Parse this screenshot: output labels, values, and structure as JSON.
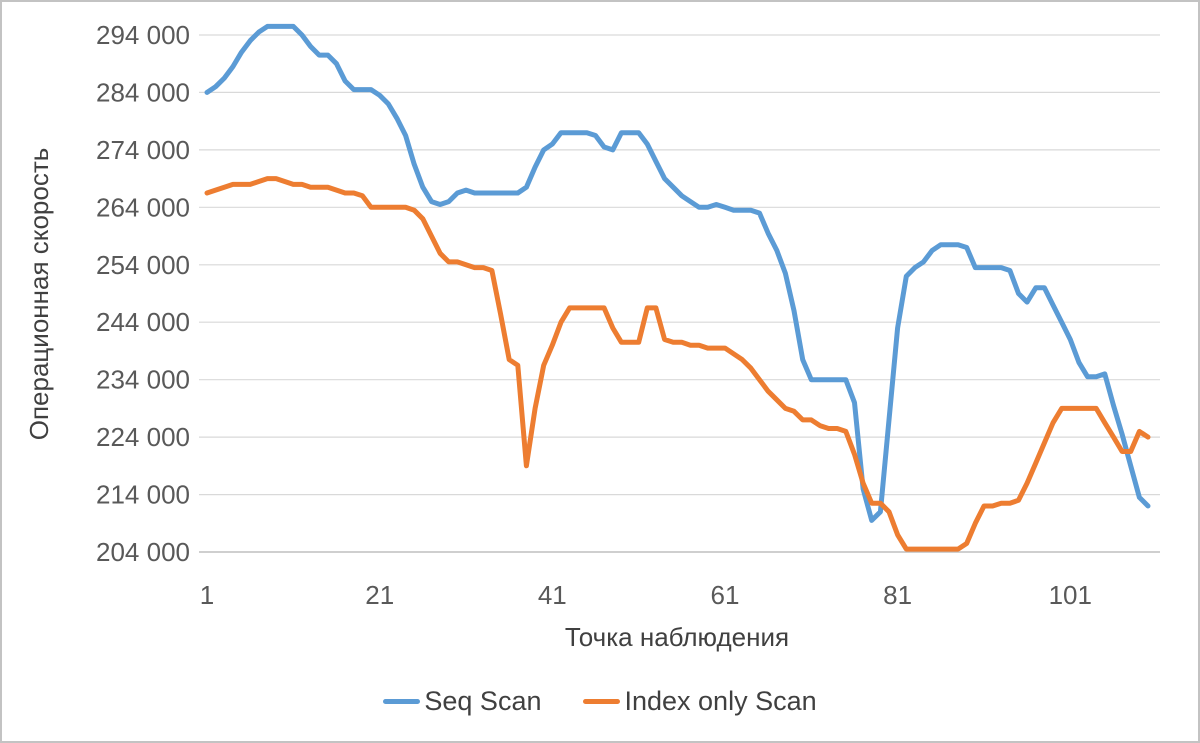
{
  "chart_data": {
    "type": "line",
    "title": "",
    "xlabel": "Точка наблюдения",
    "ylabel": "Операционная скорость",
    "grid": true,
    "legend_position": "bottom",
    "x_start": 1,
    "x_count": 110,
    "x_ticks": [
      1,
      21,
      41,
      61,
      81,
      101
    ],
    "y_ticks": [
      204000,
      214000,
      224000,
      234000,
      244000,
      254000,
      264000,
      274000,
      284000,
      294000
    ],
    "y_tick_labels": [
      "204 000",
      "214 000",
      "224 000",
      "234 000",
      "244 000",
      "254 000",
      "264 000",
      "274 000",
      "284 000",
      "294 000"
    ],
    "ylim": [
      204000,
      296000
    ],
    "series": [
      {
        "name": "Seq Scan",
        "color": "#5B9BD5",
        "values": [
          284000,
          285000,
          286500,
          288500,
          291000,
          293000,
          294500,
          295500,
          295500,
          295500,
          295500,
          294000,
          292000,
          290500,
          290500,
          289000,
          286000,
          284500,
          284500,
          284500,
          283500,
          282000,
          279500,
          276500,
          271500,
          267500,
          265000,
          264500,
          265000,
          266500,
          267000,
          266500,
          266500,
          266500,
          266500,
          266500,
          266500,
          267500,
          271000,
          274000,
          275000,
          277000,
          277000,
          277000,
          277000,
          276500,
          274500,
          274000,
          277000,
          277000,
          277000,
          275000,
          272000,
          269000,
          267500,
          266000,
          265000,
          264000,
          264000,
          264500,
          264000,
          263500,
          263500,
          263500,
          263000,
          259500,
          256500,
          252500,
          246000,
          237500,
          234000,
          234000,
          234000,
          234000,
          234000,
          230000,
          215000,
          209500,
          211000,
          227000,
          243000,
          252000,
          253500,
          254500,
          256500,
          257500,
          257500,
          257500,
          257000,
          253500,
          253500,
          253500,
          253500,
          253000,
          249000,
          247500,
          250000,
          250000,
          247000,
          244000,
          241000,
          237000,
          234500,
          234500,
          235000,
          229500,
          224500,
          219000,
          213500,
          212000
        ]
      },
      {
        "name": "Index only Scan",
        "color": "#ED7D31",
        "values": [
          266500,
          267000,
          267500,
          268000,
          268000,
          268000,
          268500,
          269000,
          269000,
          268500,
          268000,
          268000,
          267500,
          267500,
          267500,
          267000,
          266500,
          266500,
          266000,
          264000,
          264000,
          264000,
          264000,
          264000,
          263500,
          262000,
          259000,
          256000,
          254500,
          254500,
          254000,
          253500,
          253500,
          253000,
          245500,
          237500,
          236500,
          219000,
          229000,
          236500,
          240000,
          244000,
          246500,
          246500,
          246500,
          246500,
          246500,
          243000,
          240500,
          240500,
          240500,
          246500,
          246500,
          241000,
          240500,
          240500,
          240000,
          240000,
          239500,
          239500,
          239500,
          238500,
          237500,
          236000,
          234000,
          232000,
          230500,
          229000,
          228500,
          227000,
          227000,
          226000,
          225500,
          225500,
          225000,
          221000,
          216000,
          212500,
          212500,
          211000,
          207000,
          204500,
          204500,
          204500,
          204500,
          204500,
          204500,
          204500,
          205500,
          209000,
          212000,
          212000,
          212500,
          212500,
          213000,
          216000,
          219500,
          223000,
          226500,
          229000,
          229000,
          229000,
          229000,
          229000,
          226500,
          224000,
          221500,
          221500,
          225000,
          224000
        ]
      }
    ]
  }
}
